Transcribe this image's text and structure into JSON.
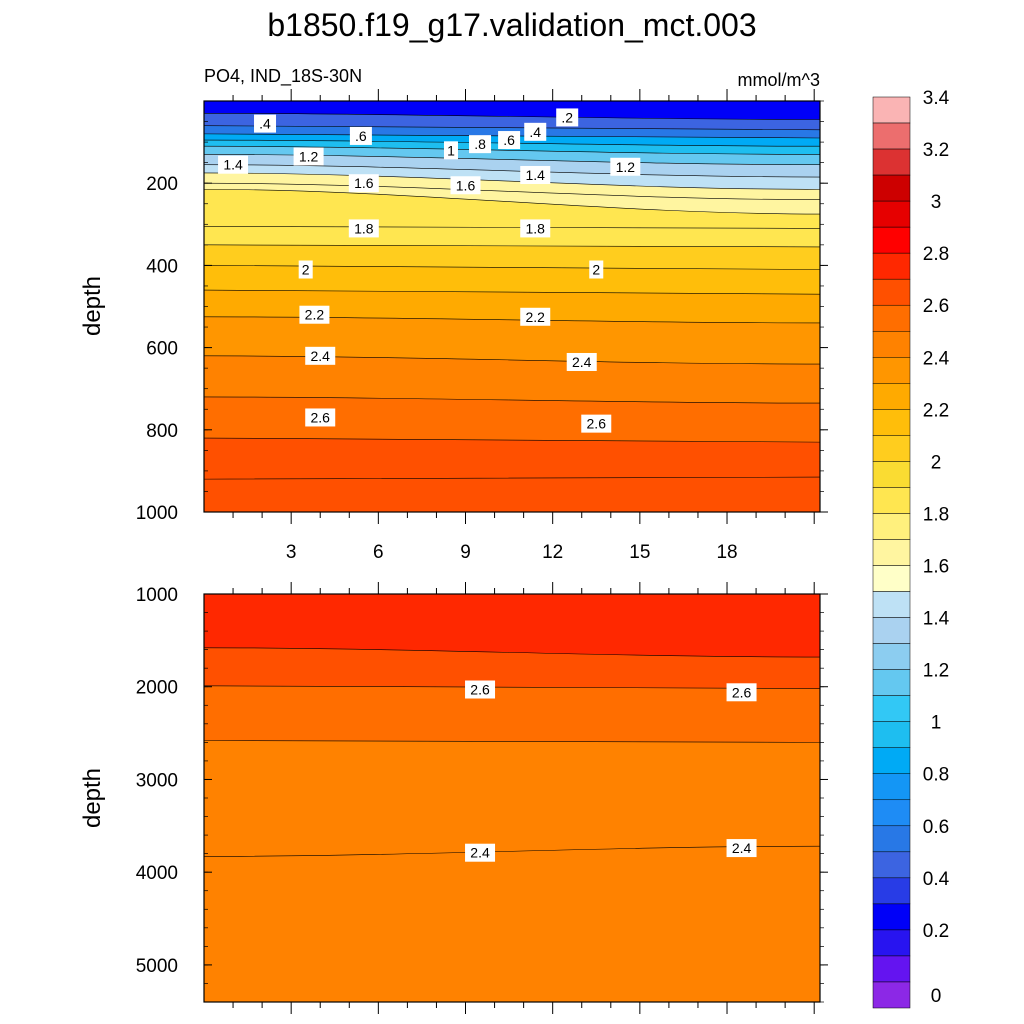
{
  "chart_data": {
    "type": "heatmap",
    "title": "b1850.f19_g17.validation_mct.003",
    "variable": "PO4, IND_18S-30N",
    "units": "mmol/m^3",
    "x_ticks": [
      "3",
      "6",
      "9",
      "12",
      "15",
      "18"
    ],
    "colorbar": {
      "levels": [
        "0",
        "0.2",
        "0.4",
        "0.6",
        "0.8",
        "1",
        "1.2",
        "1.4",
        "1.6",
        "1.8",
        "2",
        "2.2",
        "2.4",
        "2.6",
        "2.8",
        "3",
        "3.2",
        "3.4"
      ],
      "colors": [
        "#8c28e6",
        "#6414f0",
        "#2814f0",
        "#0000f8",
        "#283ce6",
        "#3c64e1",
        "#2878e6",
        "#1e8cf5",
        "#1496f5",
        "#00aaf5",
        "#1ebef0",
        "#32c8f5",
        "#64c8f0",
        "#8ccdf0",
        "#aad2f0",
        "#bee1f5",
        "#ffffc8",
        "#fff5a0",
        "#fff07d",
        "#ffe650",
        "#fadc32",
        "#ffcd1e",
        "#ffbe0a",
        "#ffaa00",
        "#ff9600",
        "#ff8200",
        "#ff6e00",
        "#ff5000",
        "#ff2800",
        "#ff0000",
        "#e60000",
        "#cd0000",
        "#dc3232",
        "#ec6e6e",
        "#fab4b4"
      ]
    },
    "panels": [
      {
        "name": "upper",
        "ylabel": "depth",
        "ylim": [
          0,
          1000
        ],
        "y_ticks": [
          "200",
          "400",
          "600",
          "800",
          "1000"
        ],
        "contours": [
          {
            "level": 2.6,
            "depth_west": 920,
            "depth_east": 915
          },
          {
            "level": 2.5,
            "depth_west": 820,
            "depth_east": 830
          },
          {
            "level": 2.4,
            "depth_west": 720,
            "depth_east": 735
          },
          {
            "level": 2.3,
            "depth_west": 620,
            "depth_east": 640
          },
          {
            "level": 2.2,
            "depth_west": 525,
            "depth_east": 540
          },
          {
            "level": 2.1,
            "depth_west": 460,
            "depth_east": 470
          },
          {
            "level": 2.0,
            "depth_west": 400,
            "depth_east": 410
          },
          {
            "level": 1.9,
            "depth_west": 350,
            "depth_east": 355
          },
          {
            "level": 1.8,
            "depth_west": 305,
            "depth_east": 310
          },
          {
            "level": 1.7,
            "depth_west": 215,
            "depth_east": 275
          },
          {
            "level": 1.6,
            "depth_west": 200,
            "depth_east": 240
          },
          {
            "level": 1.5,
            "depth_west": 175,
            "depth_east": 215
          },
          {
            "level": 1.4,
            "depth_west": 155,
            "depth_east": 185
          },
          {
            "level": 1.2,
            "depth_west": 130,
            "depth_east": 155
          },
          {
            "level": 1.0,
            "depth_west": 110,
            "depth_east": 130
          },
          {
            "level": 0.8,
            "depth_west": 95,
            "depth_east": 110
          },
          {
            "level": 0.6,
            "depth_west": 80,
            "depth_east": 90
          },
          {
            "level": 0.4,
            "depth_west": 60,
            "depth_east": 70
          },
          {
            "level": 0.2,
            "depth_west": 30,
            "depth_east": 45
          }
        ],
        "labels": [
          {
            "text": ".4",
            "x": 2.1,
            "depth": 55
          },
          {
            "text": ".6",
            "x": 5.4,
            "depth": 85
          },
          {
            "text": "1.4",
            "x": 1.0,
            "depth": 155
          },
          {
            "text": "1.2",
            "x": 3.6,
            "depth": 135
          },
          {
            "text": "1",
            "x": 8.5,
            "depth": 120
          },
          {
            "text": ".8",
            "x": 9.5,
            "depth": 105
          },
          {
            "text": ".6",
            "x": 10.5,
            "depth": 95
          },
          {
            "text": ".4",
            "x": 11.4,
            "depth": 75
          },
          {
            "text": ".2",
            "x": 12.5,
            "depth": 40
          },
          {
            "text": "1.2",
            "x": 14.5,
            "depth": 160
          },
          {
            "text": "1.4",
            "x": 11.4,
            "depth": 180
          },
          {
            "text": "1.6",
            "x": 5.5,
            "depth": 200
          },
          {
            "text": "1.6",
            "x": 9.0,
            "depth": 205
          },
          {
            "text": "1.8",
            "x": 5.5,
            "depth": 310
          },
          {
            "text": "1.8",
            "x": 11.4,
            "depth": 310
          },
          {
            "text": "2",
            "x": 3.5,
            "depth": 410
          },
          {
            "text": "2",
            "x": 13.5,
            "depth": 410
          },
          {
            "text": "2.2",
            "x": 3.8,
            "depth": 520
          },
          {
            "text": "2.2",
            "x": 11.4,
            "depth": 525
          },
          {
            "text": "2.4",
            "x": 4.0,
            "depth": 620
          },
          {
            "text": "2.4",
            "x": 13.0,
            "depth": 635
          },
          {
            "text": "2.6",
            "x": 4.0,
            "depth": 770
          },
          {
            "text": "2.6",
            "x": 13.5,
            "depth": 785
          }
        ]
      },
      {
        "name": "lower",
        "ylabel": "depth",
        "ylim": [
          1000,
          5400
        ],
        "y_ticks": [
          "1000",
          "2000",
          "3000",
          "4000",
          "5000"
        ],
        "contours": [
          {
            "level": 2.7,
            "depth_west": 1580,
            "depth_east": 1680
          },
          {
            "level": 2.6,
            "depth_west": 1990,
            "depth_east": 2020
          },
          {
            "level": 2.5,
            "depth_west": 2580,
            "depth_east": 2600
          },
          {
            "level": 2.4,
            "depth_west": 3830,
            "depth_east": 3720
          }
        ],
        "labels": [
          {
            "text": "2.6",
            "x": 9.5,
            "depth": 2030
          },
          {
            "text": "2.6",
            "x": 18.5,
            "depth": 2060
          },
          {
            "text": "2.4",
            "x": 9.5,
            "depth": 3790
          },
          {
            "text": "2.4",
            "x": 18.5,
            "depth": 3740
          }
        ]
      }
    ]
  }
}
